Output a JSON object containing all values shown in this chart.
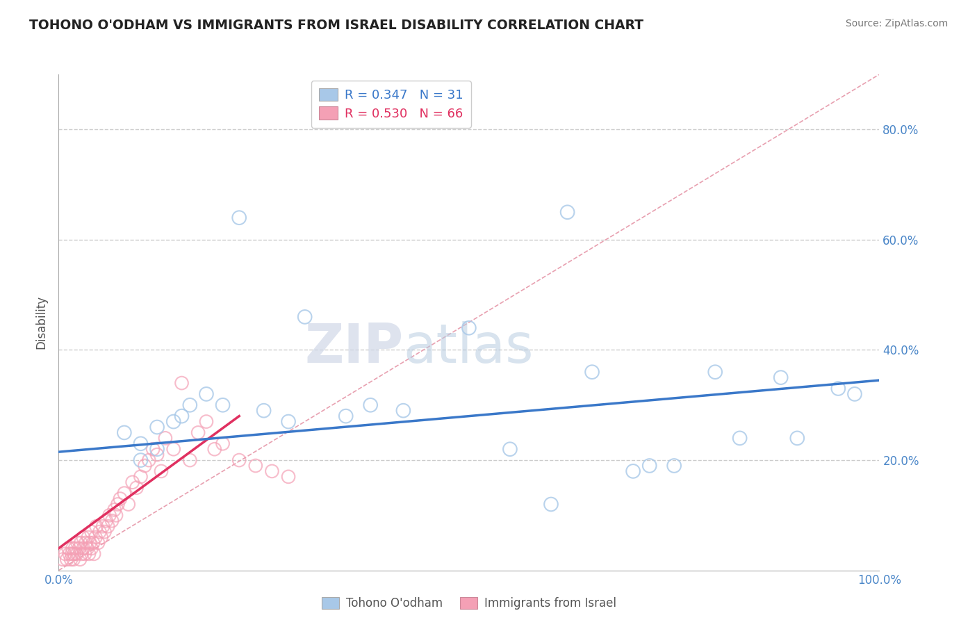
{
  "title": "TOHONO O'ODHAM VS IMMIGRANTS FROM ISRAEL DISABILITY CORRELATION CHART",
  "source": "Source: ZipAtlas.com",
  "ylabel": "Disability",
  "xlim": [
    0.0,
    1.0
  ],
  "ylim": [
    0.0,
    0.9
  ],
  "x_ticks": [
    0.0,
    0.1,
    0.2,
    0.3,
    0.4,
    0.5,
    0.6,
    0.7,
    0.8,
    0.9,
    1.0
  ],
  "x_tick_labels": [
    "0.0%",
    "",
    "",
    "",
    "",
    "",
    "",
    "",
    "",
    "",
    "100.0%"
  ],
  "y_ticks": [
    0.0,
    0.2,
    0.4,
    0.6,
    0.8
  ],
  "y_tick_labels": [
    "",
    "20.0%",
    "40.0%",
    "60.0%",
    "80.0%"
  ],
  "legend_blue_r": "0.347",
  "legend_blue_n": "31",
  "legend_pink_r": "0.530",
  "legend_pink_n": "66",
  "blue_color": "#a8c8e8",
  "pink_color": "#f4a0b5",
  "blue_line_color": "#3a78c9",
  "pink_line_color": "#e03060",
  "diag_line_color": "#e8a0b0",
  "grid_color": "#cccccc",
  "blue_scatter_x": [
    0.08,
    0.1,
    0.1,
    0.12,
    0.12,
    0.14,
    0.15,
    0.16,
    0.18,
    0.2,
    0.22,
    0.25,
    0.28,
    0.3,
    0.35,
    0.38,
    0.42,
    0.5,
    0.55,
    0.6,
    0.62,
    0.65,
    0.7,
    0.72,
    0.75,
    0.8,
    0.83,
    0.88,
    0.9,
    0.95,
    0.97
  ],
  "blue_scatter_y": [
    0.25,
    0.2,
    0.23,
    0.22,
    0.26,
    0.27,
    0.28,
    0.3,
    0.32,
    0.3,
    0.64,
    0.29,
    0.27,
    0.46,
    0.28,
    0.3,
    0.29,
    0.44,
    0.22,
    0.12,
    0.65,
    0.36,
    0.18,
    0.19,
    0.19,
    0.36,
    0.24,
    0.35,
    0.24,
    0.33,
    0.32
  ],
  "pink_scatter_x": [
    0.005,
    0.008,
    0.01,
    0.012,
    0.013,
    0.015,
    0.016,
    0.017,
    0.018,
    0.019,
    0.02,
    0.022,
    0.023,
    0.025,
    0.026,
    0.027,
    0.028,
    0.03,
    0.03,
    0.032,
    0.033,
    0.035,
    0.036,
    0.037,
    0.038,
    0.04,
    0.04,
    0.042,
    0.043,
    0.045,
    0.046,
    0.048,
    0.05,
    0.052,
    0.054,
    0.056,
    0.058,
    0.06,
    0.062,
    0.065,
    0.068,
    0.07,
    0.072,
    0.075,
    0.08,
    0.085,
    0.09,
    0.095,
    0.1,
    0.105,
    0.11,
    0.115,
    0.12,
    0.125,
    0.13,
    0.14,
    0.15,
    0.16,
    0.17,
    0.18,
    0.19,
    0.2,
    0.22,
    0.24,
    0.26,
    0.28
  ],
  "pink_scatter_y": [
    0.02,
    0.03,
    0.02,
    0.04,
    0.03,
    0.02,
    0.03,
    0.04,
    0.02,
    0.03,
    0.04,
    0.03,
    0.05,
    0.04,
    0.02,
    0.05,
    0.03,
    0.04,
    0.06,
    0.03,
    0.05,
    0.04,
    0.06,
    0.03,
    0.05,
    0.04,
    0.07,
    0.05,
    0.03,
    0.06,
    0.08,
    0.05,
    0.07,
    0.06,
    0.08,
    0.07,
    0.09,
    0.08,
    0.1,
    0.09,
    0.11,
    0.1,
    0.12,
    0.13,
    0.14,
    0.12,
    0.16,
    0.15,
    0.17,
    0.19,
    0.2,
    0.22,
    0.21,
    0.18,
    0.24,
    0.22,
    0.34,
    0.2,
    0.25,
    0.27,
    0.22,
    0.23,
    0.2,
    0.19,
    0.18,
    0.17
  ],
  "blue_trend_x": [
    0.0,
    1.0
  ],
  "blue_trend_y": [
    0.215,
    0.345
  ],
  "pink_trend_x": [
    0.0,
    0.22
  ],
  "pink_trend_y": [
    0.04,
    0.28
  ],
  "diag_line_x": [
    0.0,
    1.0
  ],
  "diag_line_y": [
    0.0,
    0.9
  ]
}
